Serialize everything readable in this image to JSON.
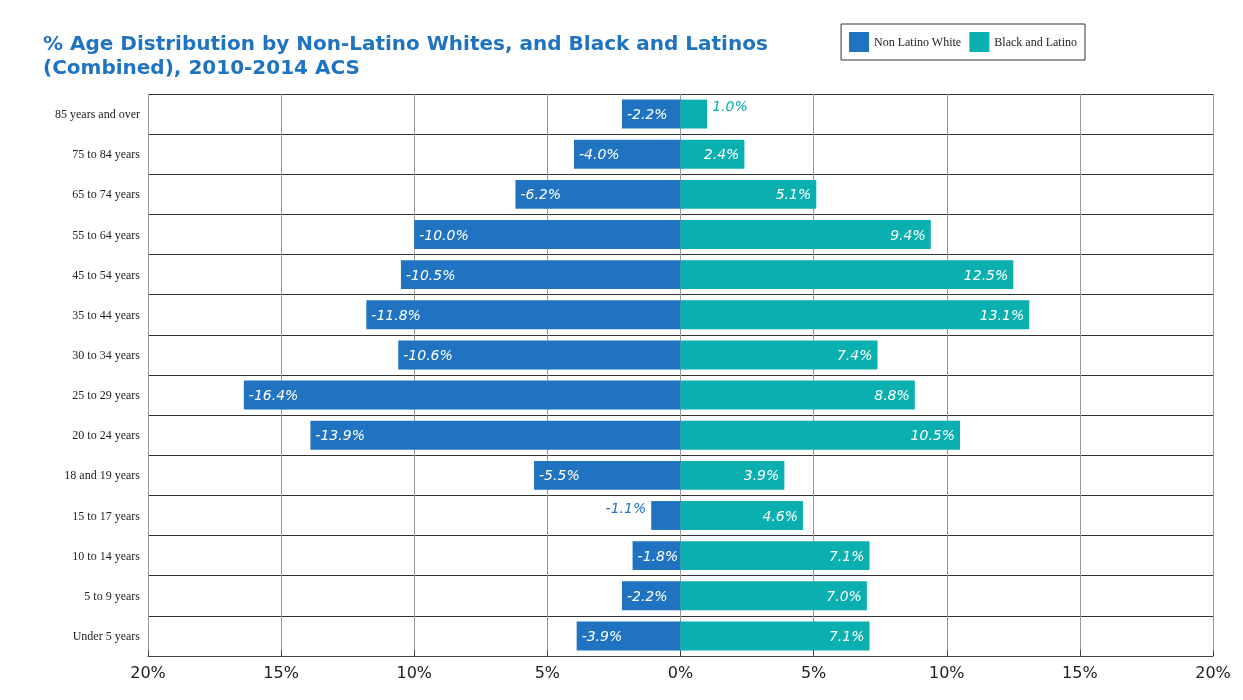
{
  "chart_data": {
    "type": "bar",
    "orientation": "horizontal",
    "title": "% Age Distribution by Non-Latino Whites, and Black and Latinos\n(Combined), 2010-2014 ACS",
    "categories": [
      "85 years and over",
      "75 to 84 years",
      "65 to 74 years",
      "55 to 64 years",
      "45 to 54 years",
      "35 to 44 years",
      "30 to 34 years",
      "25 to 29 years",
      "20 to 24 years",
      "18 and 19 years",
      "15 to 17 years",
      "10 to 14 years",
      "5 to 9 years",
      "Under 5 years"
    ],
    "series": [
      {
        "name": "Non Latino White",
        "color": "#1f73c1",
        "values": [
          -2.2,
          -4.0,
          -6.2,
          -10.0,
          -10.5,
          -11.8,
          -10.6,
          -16.4,
          -13.9,
          -5.5,
          -1.1,
          -1.8,
          -2.2,
          -3.9
        ],
        "value_labels": [
          "-2.2%",
          "-4.0%",
          "-6.2%",
          "-10.0%",
          "-10.5%",
          "-11.8%",
          "-10.6%",
          "-16.4%",
          "-13.9%",
          "-5.5%",
          "-1.1%",
          "-1.8%",
          "-2.2%",
          "-3.9%"
        ]
      },
      {
        "name": "Black and Latino",
        "color": "#0ab0b0",
        "values": [
          1.0,
          2.4,
          5.1,
          9.4,
          12.5,
          13.1,
          7.4,
          8.8,
          10.5,
          3.9,
          4.6,
          7.1,
          7.0,
          7.1
        ],
        "value_labels": [
          "1.0%",
          "2.4%",
          "5.1%",
          "9.4%",
          "12.5%",
          "13.1%",
          "7.4%",
          "8.8%",
          "10.5%",
          "3.9%",
          "4.6%",
          "7.1%",
          "7.0%",
          "7.1%"
        ]
      }
    ],
    "xlim": [
      -20,
      20
    ],
    "xticks": [
      {
        "value": -20,
        "label": "20%"
      },
      {
        "value": -15,
        "label": "15%"
      },
      {
        "value": -10,
        "label": "10%"
      },
      {
        "value": -5,
        "label": "5%"
      },
      {
        "value": 0,
        "label": "0%"
      },
      {
        "value": 5,
        "label": "5%"
      },
      {
        "value": 10,
        "label": "10%"
      },
      {
        "value": 15,
        "label": "15%"
      },
      {
        "value": 20,
        "label": "20%"
      }
    ],
    "grid": true,
    "legend": "top right",
    "stacked": true
  }
}
